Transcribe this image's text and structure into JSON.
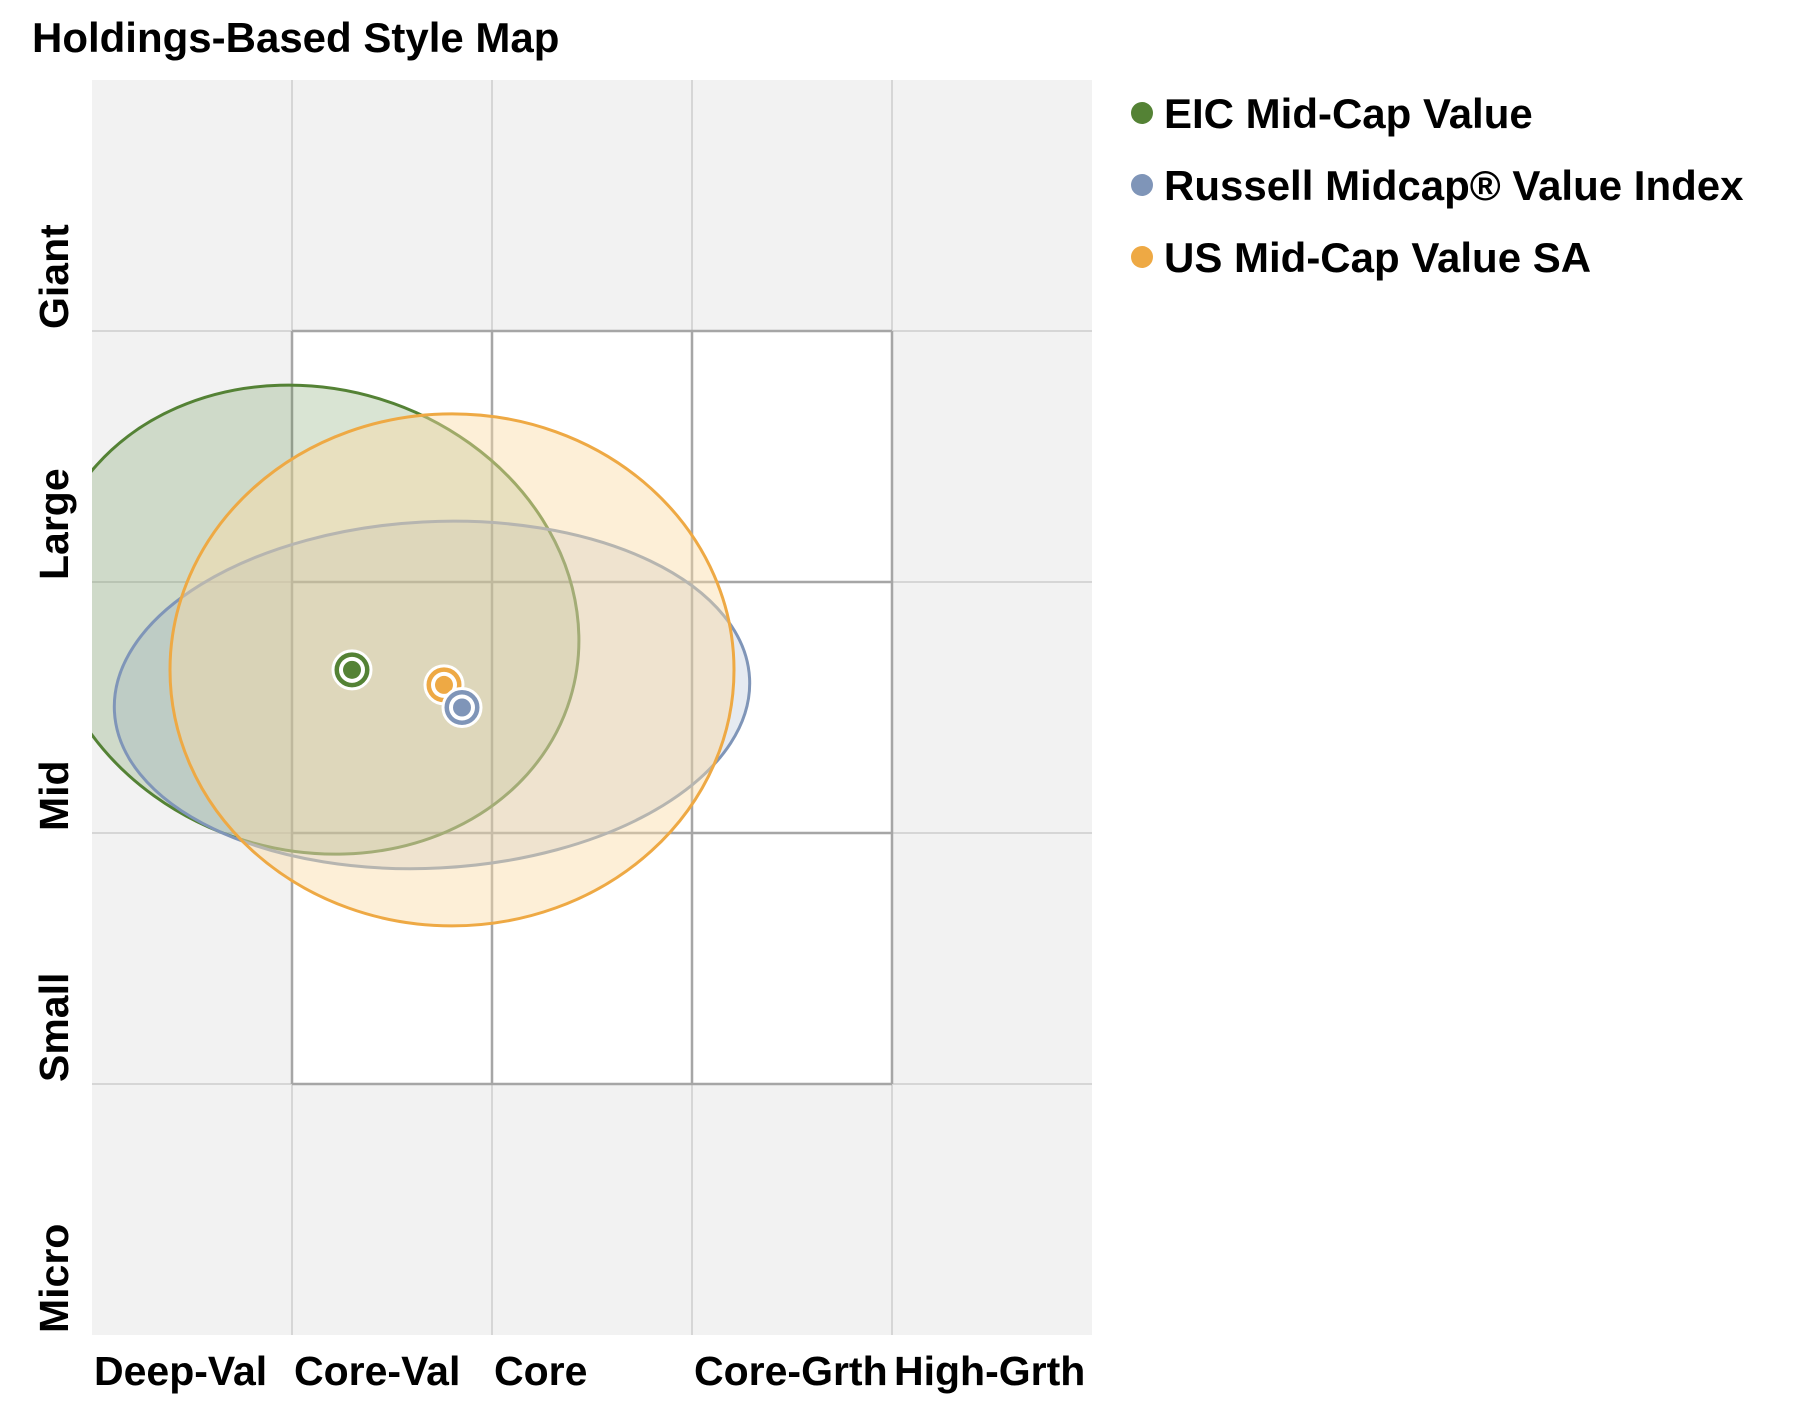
{
  "chart_data": {
    "type": "scatter",
    "title": "Holdings-Based Style Map",
    "x_categories": [
      "Deep-Val",
      "Core-Val",
      "Core",
      "Core-Grth",
      "High-Grth"
    ],
    "y_categories": [
      "Giant",
      "Large",
      "Mid",
      "Small",
      "Micro"
    ],
    "xlim": [
      0,
      5
    ],
    "ylim": [
      0,
      5
    ],
    "style_box": {
      "x": [
        1,
        4
      ],
      "y": [
        1,
        4
      ]
    },
    "legend_position": "top-right",
    "grid": true,
    "series": [
      {
        "name": "EIC Mid-Cap Value",
        "color": "#548235",
        "fill": "rgba(84,130,53,0.22)",
        "centroid": {
          "x": 1.3,
          "y": 2.35
        },
        "ellipse": {
          "cx": 1.1,
          "cy": 2.15,
          "rx": 1.35,
          "ry": 0.92,
          "rotation_deg": 17
        }
      },
      {
        "name": "Russell Midcap® Value Index",
        "color": "#7f95b8",
        "fill": "rgba(127,149,184,0.20)",
        "centroid": {
          "x": 1.85,
          "y": 2.5
        },
        "ellipse": {
          "cx": 1.7,
          "cy": 2.45,
          "rx": 1.59,
          "ry": 0.69,
          "rotation_deg": -3
        }
      },
      {
        "name": "US Mid-Cap Value SA",
        "color": "#eea944",
        "fill": "rgba(251,220,167,0.45)",
        "centroid": {
          "x": 1.76,
          "y": 2.41
        },
        "ellipse": {
          "cx": 1.8,
          "cy": 2.35,
          "rx": 1.41,
          "ry": 1.02,
          "rotation_deg": 0
        }
      }
    ]
  }
}
